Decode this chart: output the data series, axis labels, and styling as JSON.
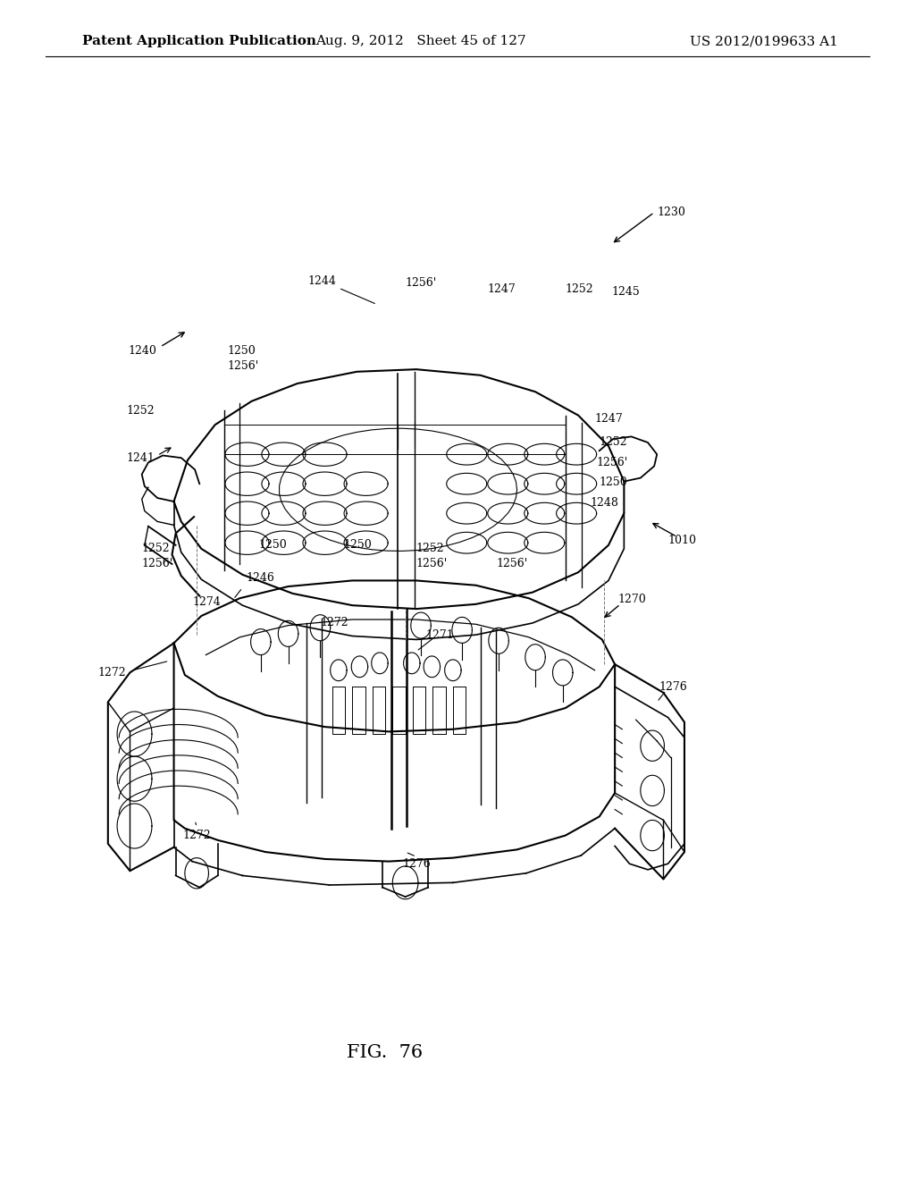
{
  "background_color": "#ffffff",
  "header_left": "Patent Application Publication",
  "header_mid": "Aug. 9, 2012   Sheet 45 of 127",
  "header_right": "US 2012/0199633 A1",
  "figure_label": "FIG.  76",
  "font_size_header": 11,
  "font_size_label": 9,
  "font_size_fig": 15
}
